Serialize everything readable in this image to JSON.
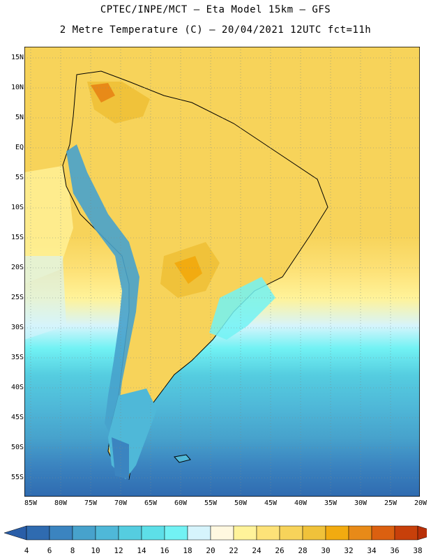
{
  "title_line1": "CPTEC/INPE/MCT –  Eta Model 15km – GFS",
  "title_line2": "2 Metre Temperature (C) – 20/04/2021 12UTC fct=11h",
  "lat_labels": [
    "15N",
    "10N",
    "5N",
    "EQ",
    "5S",
    "10S",
    "15S",
    "20S",
    "25S",
    "30S",
    "35S",
    "40S",
    "45S",
    "50S",
    "55S"
  ],
  "lon_labels": [
    "85W",
    "80W",
    "75W",
    "70W",
    "65W",
    "60W",
    "55W",
    "50W",
    "45W",
    "40W",
    "35W",
    "30W",
    "25W",
    "20W"
  ],
  "colorbar": {
    "labels": [
      "4",
      "6",
      "8",
      "10",
      "12",
      "14",
      "16",
      "18",
      "20",
      "22",
      "24",
      "26",
      "28",
      "30",
      "32",
      "34",
      "36",
      "38"
    ],
    "colors": [
      "#2f6bb0",
      "#3b84c0",
      "#47a2cc",
      "#4fb8d8",
      "#55cde0",
      "#5ddfe8",
      "#72f2f4",
      "#d6f4fc",
      "#fff8e0",
      "#fff39a",
      "#fde278",
      "#f7d35a",
      "#f0c23a",
      "#f2ab10",
      "#e88a18",
      "#db6010",
      "#c8400a"
    ],
    "under_color": "#2a5ea8",
    "over_color": "#b83008"
  }
}
